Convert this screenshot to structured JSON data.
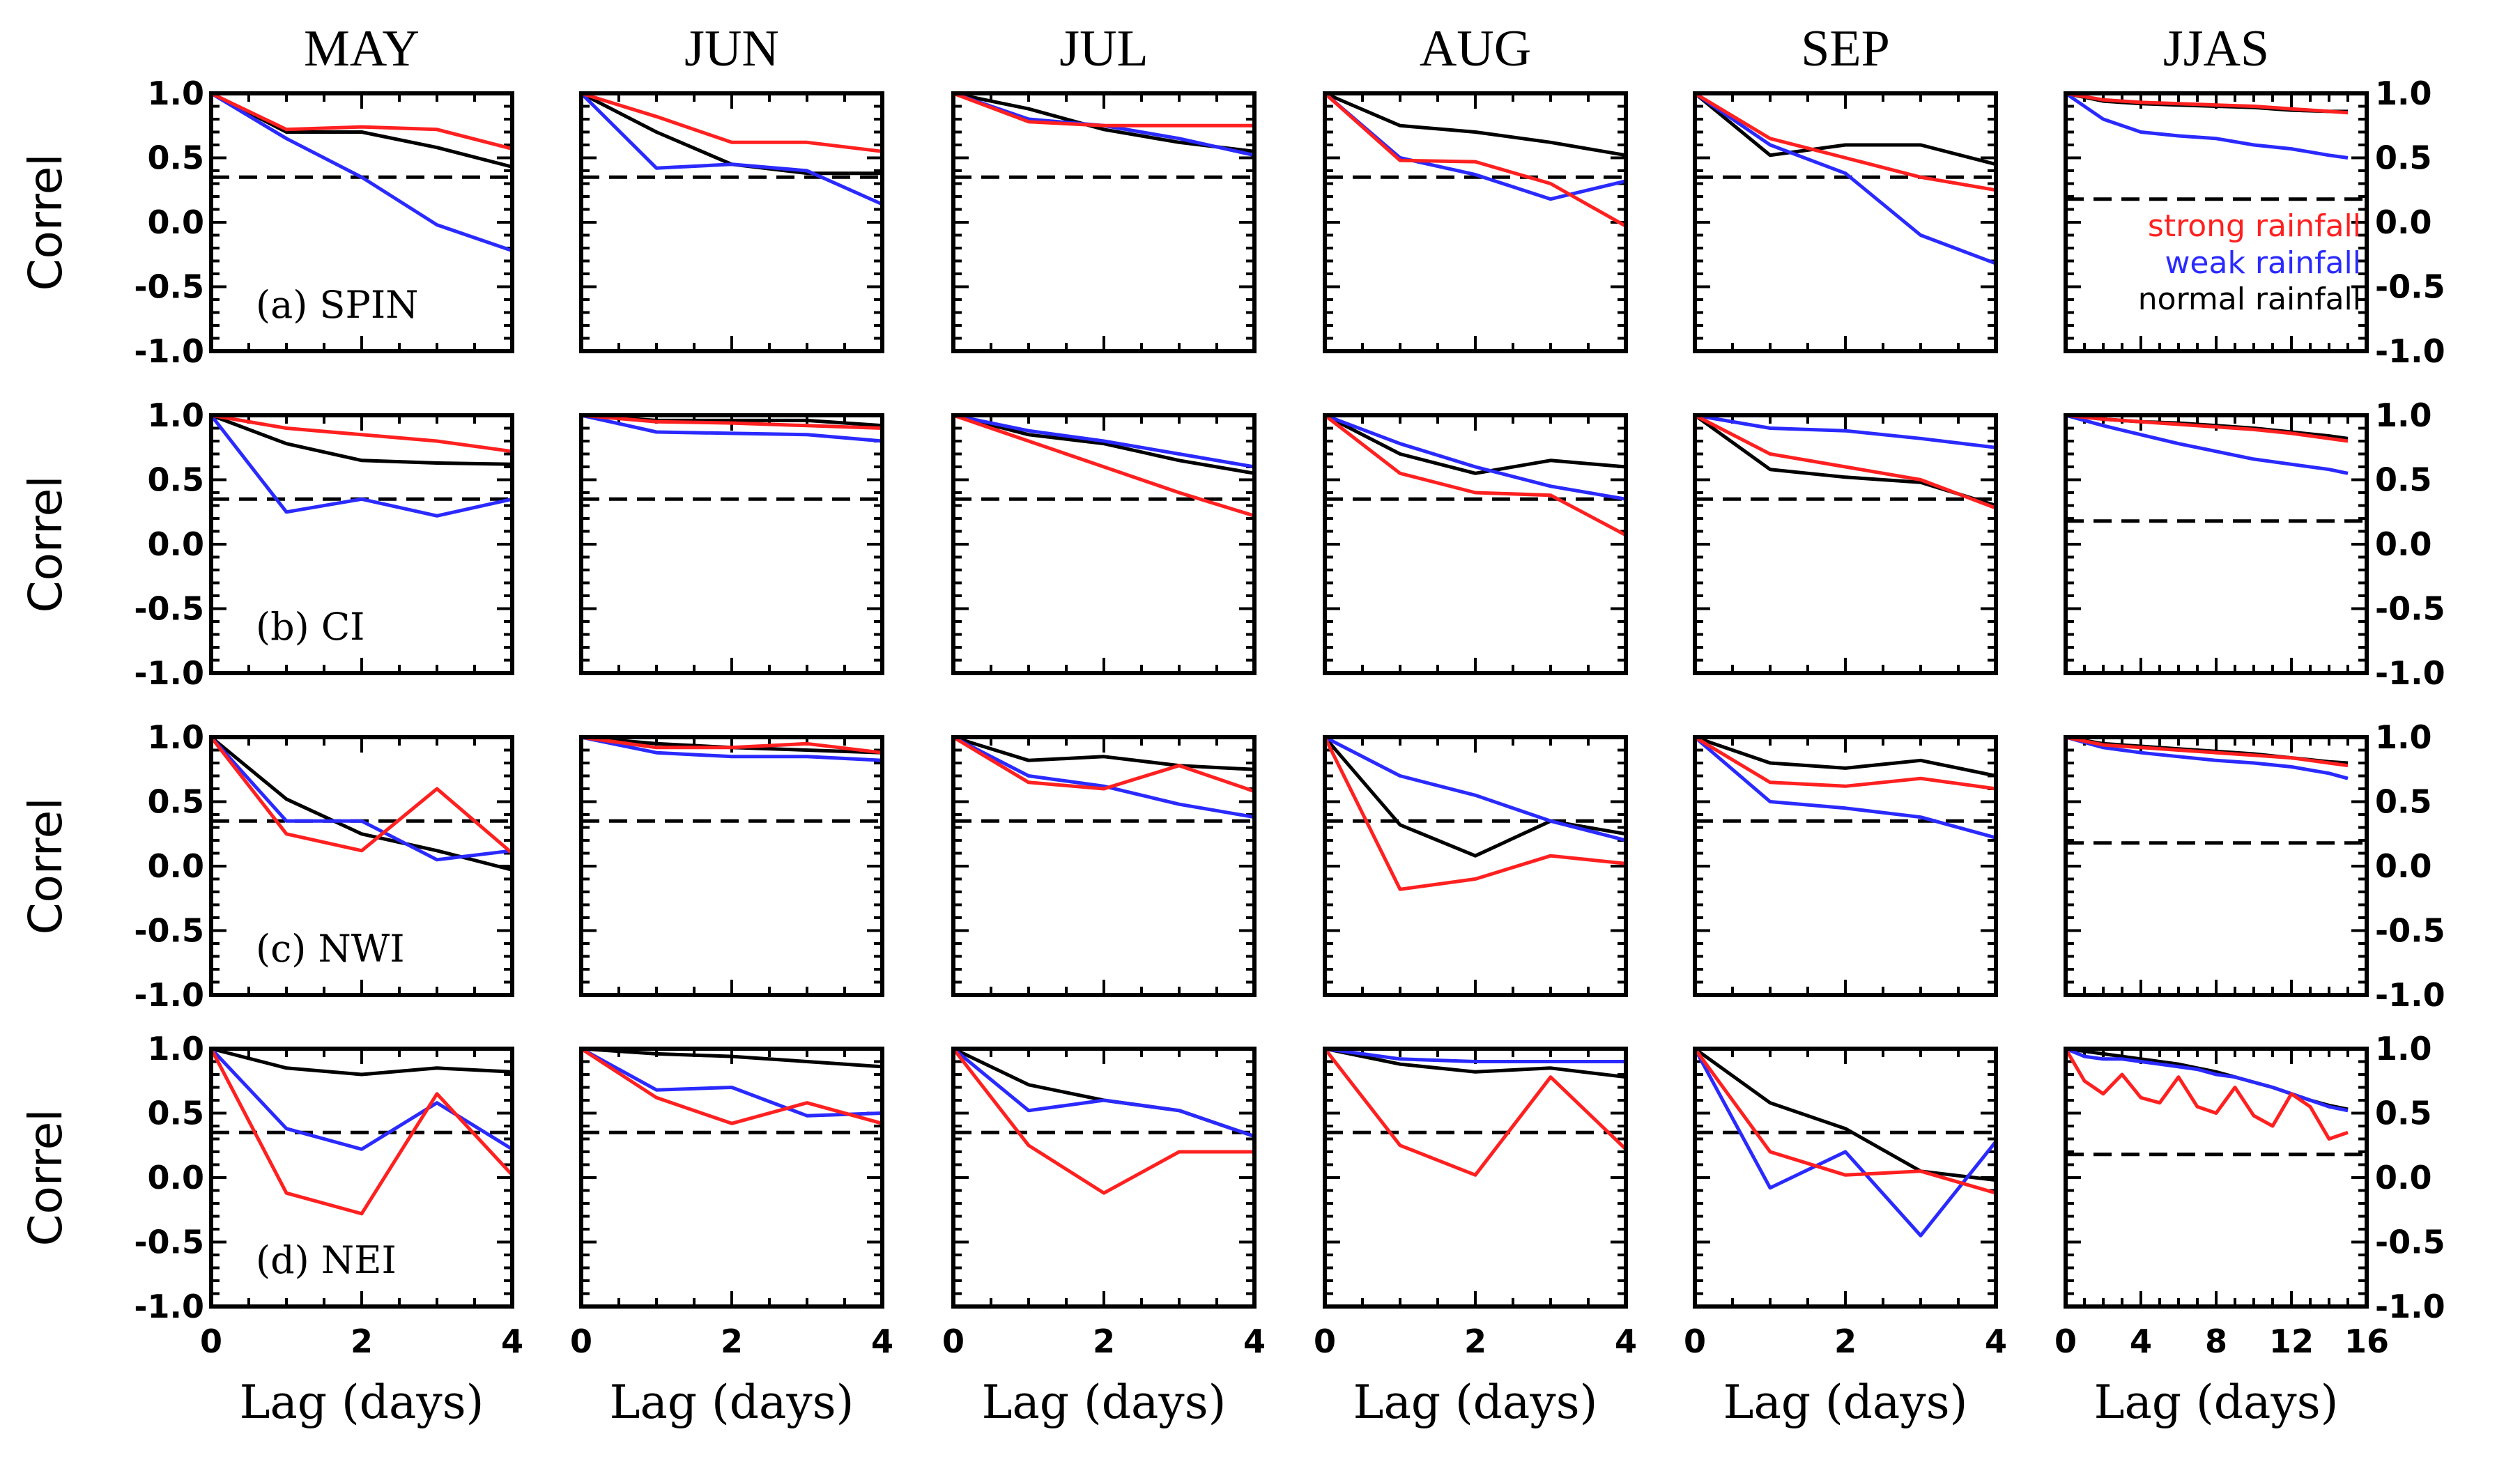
{
  "figure": {
    "columns": [
      "MAY",
      "JUN",
      "JUL",
      "AUG",
      "SEP",
      "JJAS"
    ],
    "rows": [
      "(a) SPIN",
      "(b) CI",
      "(c) NWI",
      "(d) NEI"
    ],
    "ylabel": "Correl",
    "xlabel": "Lag (days)",
    "yticks": [
      "1.0",
      "0.5",
      "0.0",
      "-0.5",
      "-1.0"
    ],
    "xticks_month": [
      "0",
      "2",
      "4"
    ],
    "xticks_jjas": [
      "0",
      "4",
      "8",
      "12",
      "16"
    ],
    "legend": {
      "strong": "strong rainfall",
      "weak": "weak rainfall",
      "normal": "normal rainfall"
    },
    "colors": {
      "strong": "#ff2020",
      "weak": "#2a2aff",
      "normal": "#000000",
      "threshold": "#000000"
    }
  },
  "chart_data": {
    "type": "line",
    "ylim": [
      -1.0,
      1.0
    ],
    "xlim_month": [
      0,
      4
    ],
    "xlim_jjas": [
      0,
      16
    ],
    "series_names": [
      "strong rainfall",
      "weak rainfall",
      "normal rainfall"
    ],
    "panels": [
      [
        {
          "threshold": 0.35,
          "x": [
            0,
            1,
            2,
            3,
            4
          ],
          "strong": [
            1.0,
            0.72,
            0.74,
            0.72,
            0.57
          ],
          "weak": [
            1.0,
            0.65,
            0.35,
            -0.02,
            -0.22
          ],
          "normal": [
            1.0,
            0.7,
            0.7,
            0.58,
            0.43
          ]
        },
        {
          "threshold": 0.35,
          "x": [
            0,
            1,
            2,
            3,
            4
          ],
          "strong": [
            1.0,
            0.82,
            0.62,
            0.62,
            0.55
          ],
          "weak": [
            1.0,
            0.42,
            0.45,
            0.4,
            0.14
          ],
          "normal": [
            1.0,
            0.7,
            0.45,
            0.38,
            0.38
          ]
        },
        {
          "threshold": 0.35,
          "x": [
            0,
            1,
            2,
            3,
            4
          ],
          "strong": [
            1.0,
            0.78,
            0.75,
            0.75,
            0.75
          ],
          "weak": [
            1.0,
            0.8,
            0.75,
            0.65,
            0.52
          ],
          "normal": [
            1.0,
            0.88,
            0.72,
            0.62,
            0.55
          ]
        },
        {
          "threshold": 0.35,
          "x": [
            0,
            1,
            2,
            3,
            4
          ],
          "strong": [
            1.0,
            0.48,
            0.47,
            0.3,
            -0.03
          ],
          "weak": [
            1.0,
            0.5,
            0.37,
            0.18,
            0.32
          ],
          "normal": [
            1.0,
            0.75,
            0.7,
            0.62,
            0.52
          ]
        },
        {
          "threshold": 0.35,
          "x": [
            0,
            1,
            2,
            3,
            4
          ],
          "strong": [
            1.0,
            0.65,
            0.5,
            0.35,
            0.25
          ],
          "weak": [
            1.0,
            0.6,
            0.38,
            -0.1,
            -0.32
          ],
          "normal": [
            1.0,
            0.52,
            0.6,
            0.6,
            0.45
          ]
        },
        {
          "threshold": 0.18,
          "x": [
            0,
            2,
            4,
            6,
            8,
            10,
            12,
            14,
            15
          ],
          "strong": [
            1.0,
            0.95,
            0.93,
            0.92,
            0.91,
            0.9,
            0.88,
            0.86,
            0.85
          ],
          "weak": [
            1.0,
            0.8,
            0.7,
            0.67,
            0.65,
            0.6,
            0.57,
            0.52,
            0.5
          ],
          "normal": [
            1.0,
            0.94,
            0.92,
            0.91,
            0.9,
            0.89,
            0.87,
            0.86,
            0.86
          ]
        }
      ],
      [
        {
          "threshold": 0.35,
          "x": [
            0,
            1,
            2,
            3,
            4
          ],
          "strong": [
            1.0,
            0.9,
            0.85,
            0.8,
            0.72
          ],
          "weak": [
            1.0,
            0.25,
            0.35,
            0.22,
            0.35
          ],
          "normal": [
            1.0,
            0.78,
            0.65,
            0.63,
            0.62
          ]
        },
        {
          "threshold": 0.35,
          "x": [
            0,
            1,
            2,
            3,
            4
          ],
          "strong": [
            1.0,
            0.95,
            0.94,
            0.92,
            0.9
          ],
          "weak": [
            1.0,
            0.87,
            0.86,
            0.85,
            0.8
          ],
          "normal": [
            1.0,
            0.96,
            0.96,
            0.96,
            0.92
          ]
        },
        {
          "threshold": 0.35,
          "x": [
            0,
            1,
            2,
            3,
            4
          ],
          "strong": [
            1.0,
            0.8,
            0.6,
            0.4,
            0.22
          ],
          "weak": [
            1.0,
            0.88,
            0.8,
            0.7,
            0.6
          ],
          "normal": [
            1.0,
            0.85,
            0.78,
            0.65,
            0.55
          ]
        },
        {
          "threshold": 0.35,
          "x": [
            0,
            1,
            2,
            3,
            4
          ],
          "strong": [
            1.0,
            0.55,
            0.4,
            0.38,
            0.07
          ],
          "weak": [
            1.0,
            0.78,
            0.6,
            0.45,
            0.35
          ],
          "normal": [
            1.0,
            0.7,
            0.55,
            0.65,
            0.6
          ]
        },
        {
          "threshold": 0.35,
          "x": [
            0,
            1,
            2,
            3,
            4
          ],
          "strong": [
            1.0,
            0.7,
            0.6,
            0.5,
            0.28
          ],
          "weak": [
            1.0,
            0.9,
            0.88,
            0.82,
            0.75
          ],
          "normal": [
            1.0,
            0.58,
            0.52,
            0.48,
            0.3
          ]
        },
        {
          "threshold": 0.18,
          "x": [
            0,
            2,
            4,
            6,
            8,
            10,
            12,
            14,
            15
          ],
          "strong": [
            1.0,
            0.97,
            0.95,
            0.93,
            0.91,
            0.89,
            0.86,
            0.82,
            0.8
          ],
          "weak": [
            1.0,
            0.92,
            0.85,
            0.78,
            0.72,
            0.66,
            0.62,
            0.58,
            0.55
          ],
          "normal": [
            1.0,
            0.97,
            0.95,
            0.94,
            0.92,
            0.9,
            0.87,
            0.84,
            0.82
          ]
        }
      ],
      [
        {
          "threshold": 0.35,
          "x": [
            0,
            1,
            2,
            3,
            4
          ],
          "strong": [
            1.0,
            0.25,
            0.12,
            0.6,
            0.1
          ],
          "weak": [
            1.0,
            0.35,
            0.35,
            0.05,
            0.12
          ],
          "normal": [
            1.0,
            0.52,
            0.25,
            0.12,
            -0.03
          ]
        },
        {
          "threshold": 0.35,
          "x": [
            0,
            1,
            2,
            3,
            4
          ],
          "strong": [
            1.0,
            0.92,
            0.92,
            0.95,
            0.88
          ],
          "weak": [
            1.0,
            0.88,
            0.85,
            0.85,
            0.82
          ],
          "normal": [
            1.0,
            0.95,
            0.92,
            0.9,
            0.88
          ]
        },
        {
          "threshold": 0.35,
          "x": [
            0,
            1,
            2,
            3,
            4
          ],
          "strong": [
            1.0,
            0.65,
            0.6,
            0.78,
            0.58
          ],
          "weak": [
            1.0,
            0.7,
            0.62,
            0.48,
            0.38
          ],
          "normal": [
            1.0,
            0.82,
            0.85,
            0.78,
            0.75
          ]
        },
        {
          "threshold": 0.35,
          "x": [
            0,
            1,
            2,
            3,
            4
          ],
          "strong": [
            1.0,
            -0.18,
            -0.1,
            0.08,
            0.02
          ],
          "weak": [
            1.0,
            0.7,
            0.55,
            0.35,
            0.2
          ],
          "normal": [
            1.0,
            0.32,
            0.08,
            0.35,
            0.25
          ]
        },
        {
          "threshold": 0.35,
          "x": [
            0,
            1,
            2,
            3,
            4
          ],
          "strong": [
            1.0,
            0.65,
            0.62,
            0.68,
            0.6
          ],
          "weak": [
            1.0,
            0.5,
            0.45,
            0.38,
            0.22
          ],
          "normal": [
            1.0,
            0.8,
            0.76,
            0.82,
            0.7
          ]
        },
        {
          "threshold": 0.18,
          "x": [
            0,
            2,
            4,
            6,
            8,
            10,
            12,
            14,
            15
          ],
          "strong": [
            1.0,
            0.94,
            0.92,
            0.9,
            0.88,
            0.86,
            0.84,
            0.8,
            0.78
          ],
          "weak": [
            1.0,
            0.92,
            0.88,
            0.85,
            0.82,
            0.8,
            0.77,
            0.72,
            0.68
          ],
          "normal": [
            1.0,
            0.95,
            0.93,
            0.91,
            0.89,
            0.87,
            0.84,
            0.81,
            0.8
          ]
        }
      ],
      [
        {
          "threshold": 0.35,
          "x": [
            0,
            1,
            2,
            3,
            4
          ],
          "strong": [
            1.0,
            -0.12,
            -0.28,
            0.65,
            0.02
          ],
          "weak": [
            1.0,
            0.38,
            0.22,
            0.58,
            0.22
          ],
          "normal": [
            1.0,
            0.85,
            0.8,
            0.85,
            0.82
          ]
        },
        {
          "threshold": 0.35,
          "x": [
            0,
            1,
            2,
            3,
            4
          ],
          "strong": [
            1.0,
            0.62,
            0.42,
            0.58,
            0.42
          ],
          "weak": [
            1.0,
            0.68,
            0.7,
            0.48,
            0.5
          ],
          "normal": [
            1.0,
            0.96,
            0.94,
            0.9,
            0.86
          ]
        },
        {
          "threshold": 0.35,
          "x": [
            0,
            1,
            2,
            3,
            4
          ],
          "strong": [
            1.0,
            0.25,
            -0.12,
            0.2,
            0.2
          ],
          "weak": [
            1.0,
            0.52,
            0.6,
            0.52,
            0.32
          ],
          "normal": [
            1.0,
            0.72,
            0.6,
            0.52,
            0.32
          ]
        },
        {
          "threshold": 0.35,
          "x": [
            0,
            1,
            2,
            3,
            4
          ],
          "strong": [
            1.0,
            0.25,
            0.02,
            0.78,
            0.22
          ],
          "weak": [
            1.0,
            0.92,
            0.9,
            0.9,
            0.9
          ],
          "normal": [
            1.0,
            0.88,
            0.82,
            0.85,
            0.78
          ]
        },
        {
          "threshold": 0.35,
          "x": [
            0,
            1,
            2,
            3,
            4
          ],
          "strong": [
            1.0,
            0.2,
            0.02,
            0.05,
            -0.12
          ],
          "weak": [
            1.0,
            -0.08,
            0.2,
            -0.45,
            0.28
          ],
          "normal": [
            1.0,
            0.58,
            0.38,
            0.05,
            -0.02
          ]
        },
        {
          "threshold": 0.18,
          "x": [
            0,
            1,
            2,
            3,
            4,
            5,
            6,
            7,
            8,
            9,
            10,
            11,
            12,
            13,
            14,
            15
          ],
          "strong": [
            1.0,
            0.75,
            0.65,
            0.8,
            0.62,
            0.58,
            0.78,
            0.55,
            0.5,
            0.7,
            0.48,
            0.4,
            0.65,
            0.55,
            0.3,
            0.35
          ],
          "weak": [
            1.0,
            0.94,
            0.92,
            0.92,
            0.9,
            0.88,
            0.86,
            0.84,
            0.8,
            0.78,
            0.74,
            0.7,
            0.65,
            0.6,
            0.55,
            0.52
          ],
          "normal": [
            1.0,
            0.98,
            0.96,
            0.94,
            0.92,
            0.9,
            0.88,
            0.85,
            0.82,
            0.78,
            0.74,
            0.7,
            0.65,
            0.6,
            0.56,
            0.53
          ]
        }
      ]
    ]
  }
}
